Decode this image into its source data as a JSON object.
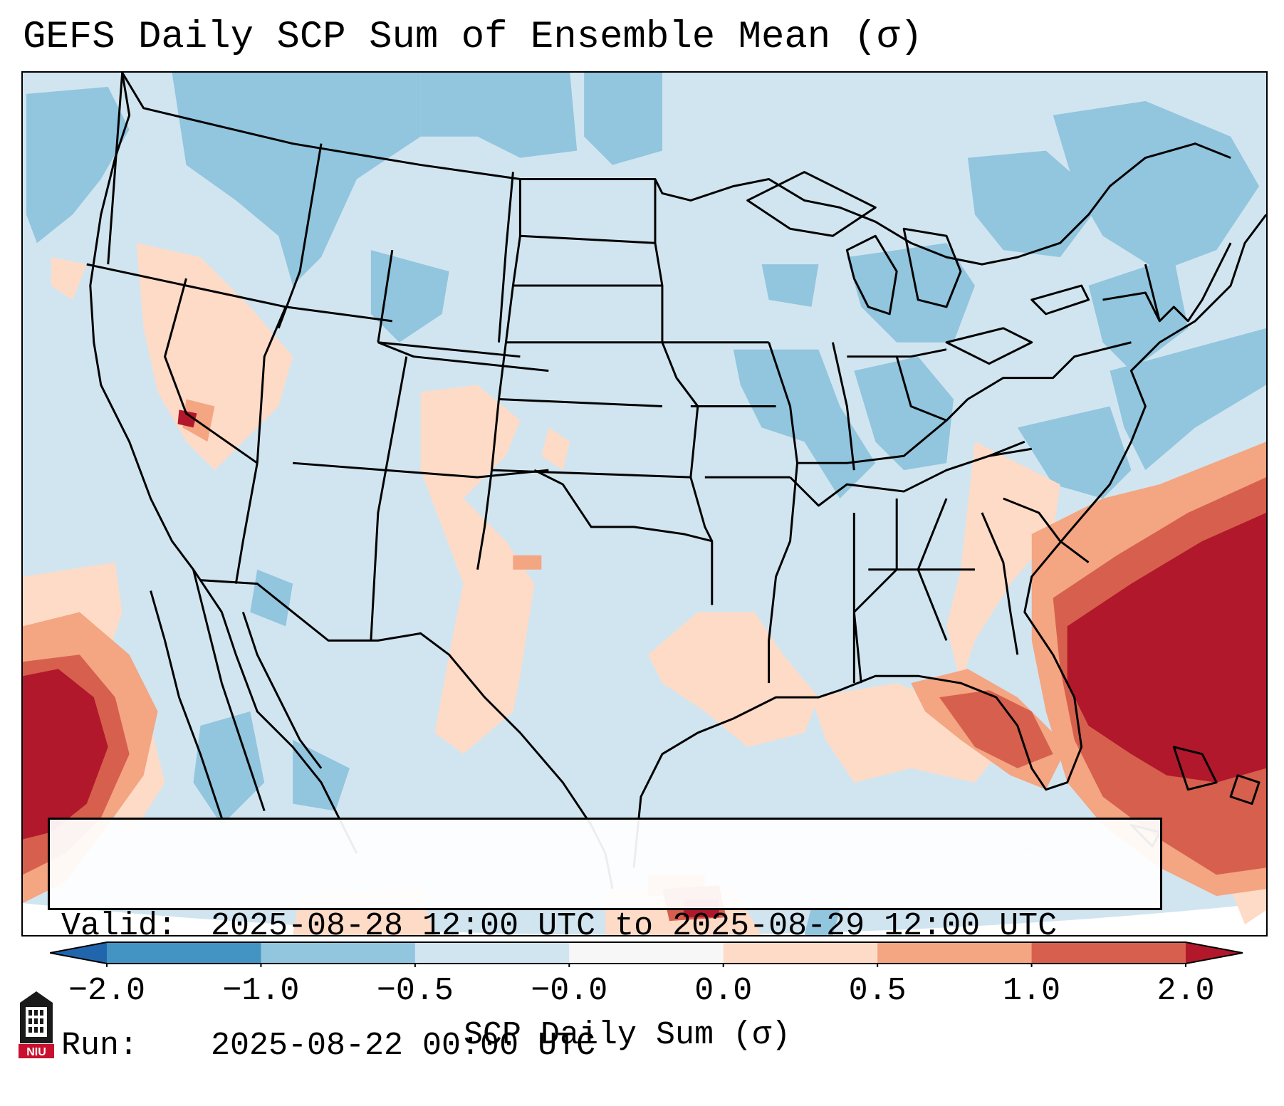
{
  "title": "GEFS Daily SCP Sum of Ensemble Mean (σ)",
  "map": {
    "region": "Contiguous United States",
    "colors": {
      "ocean_base": "#d1e5f0",
      "negative_strong": "#92c5de",
      "positive_weak": "#fddbc7",
      "positive_mid": "#f4a582",
      "positive_high": "#d6604d",
      "positive_max": "#b2182b",
      "border": "#000000"
    }
  },
  "info": {
    "valid_label": "Valid:",
    "valid_value": "2025-08-28 12:00 UTC to 2025-08-29 12:00 UTC",
    "run_label": "Run:",
    "run_value": "2025-08-22 00:00 UTC"
  },
  "colorbar": {
    "label": "SCP Daily Sum (σ)",
    "ticks": [
      "−2.0",
      "−1.0",
      "−0.5",
      "−0.0",
      "0.0",
      "0.5",
      "1.0",
      "2.0"
    ],
    "segments": [
      {
        "from": "−2.0",
        "to": "−1.0",
        "color": "#4393c3"
      },
      {
        "from": "−1.0",
        "to": "−0.5",
        "color": "#92c5de"
      },
      {
        "from": "−0.5",
        "to": "−0.0",
        "color": "#d1e5f0"
      },
      {
        "from": "−0.0",
        "to": "0.0",
        "color": "#f7f7f7"
      },
      {
        "from": "0.0",
        "to": "0.5",
        "color": "#fddbc7"
      },
      {
        "from": "0.5",
        "to": "1.0",
        "color": "#f4a582"
      },
      {
        "from": "1.0",
        "to": "2.0",
        "color": "#d6604d"
      }
    ],
    "under_color": "#2166ac",
    "over_color": "#b2182b"
  },
  "logo": {
    "text": "NIU",
    "icon": "niu-tower-icon"
  }
}
